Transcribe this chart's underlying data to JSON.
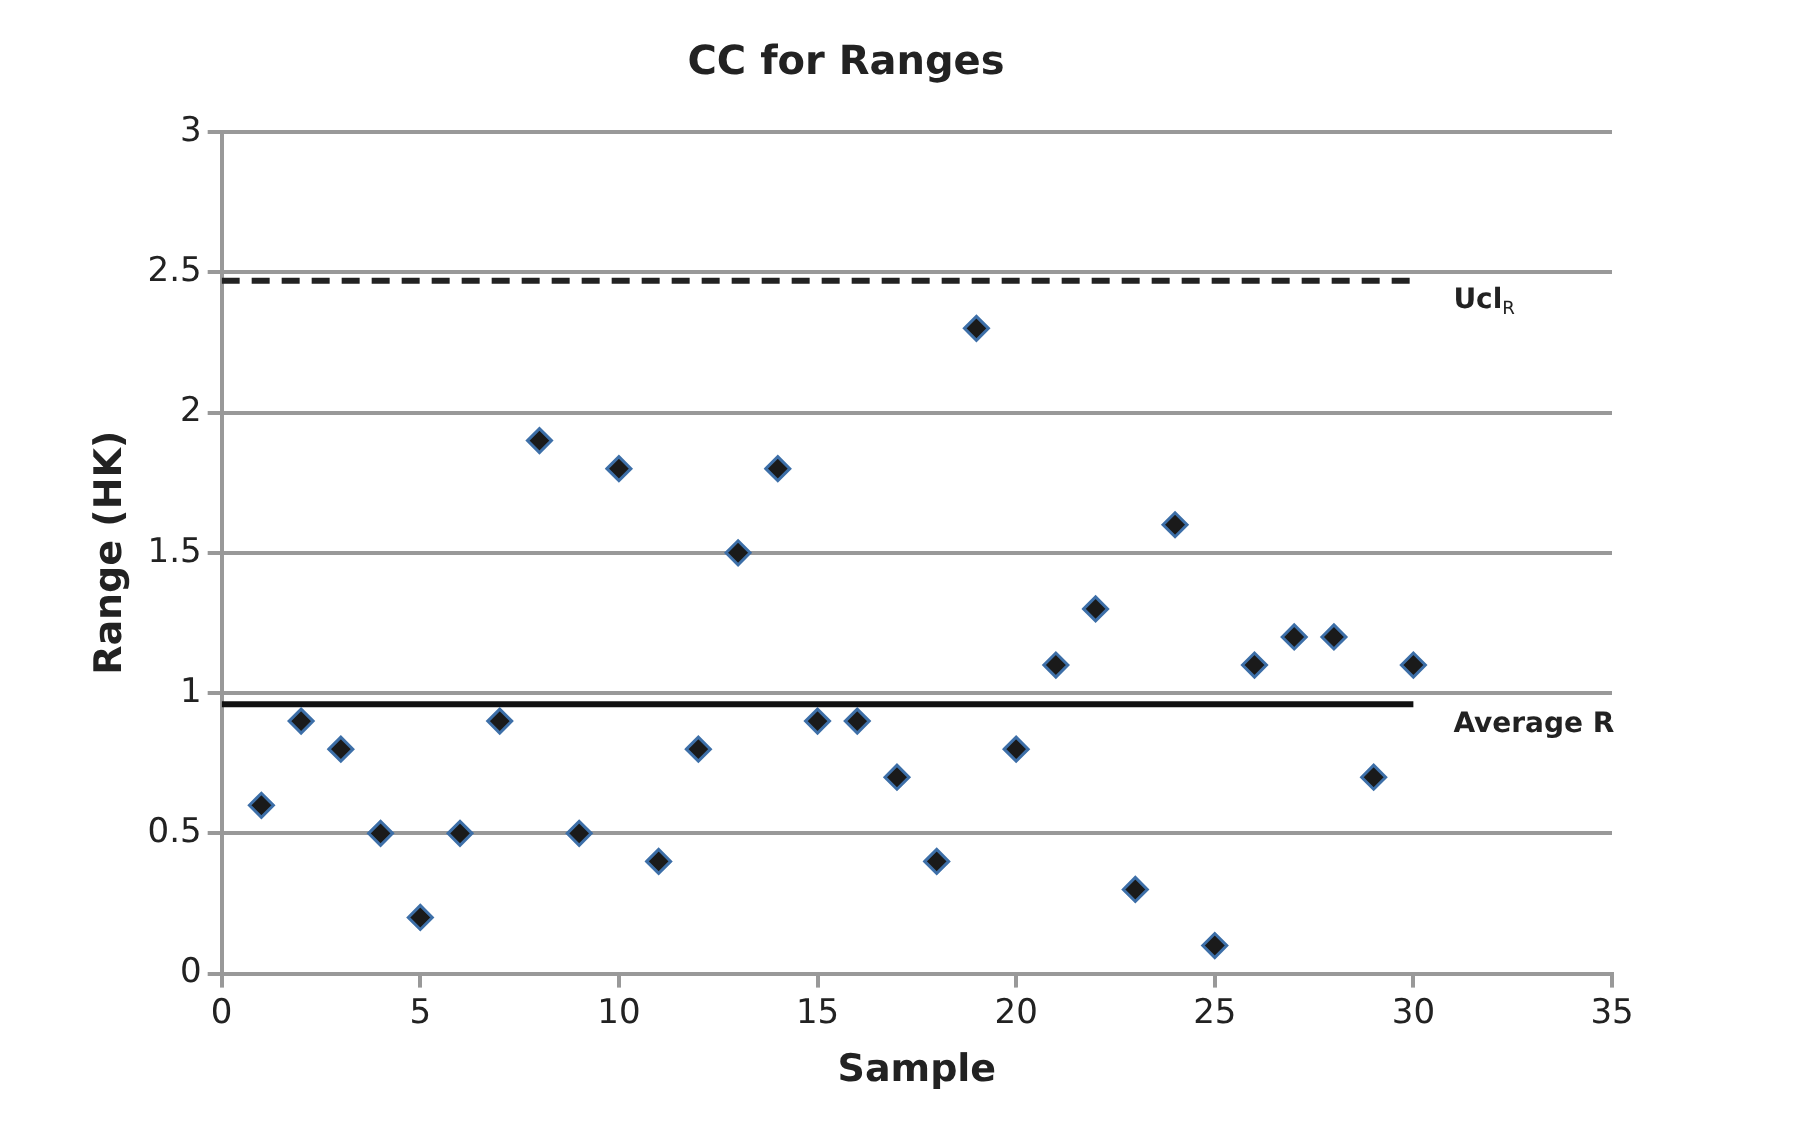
{
  "chart_data": {
    "type": "scatter",
    "title": "CC for Ranges",
    "xlabel": "Sample",
    "ylabel": "Range (HK)",
    "xlim": [
      0,
      35
    ],
    "xticks": [
      0,
      5,
      10,
      15,
      20,
      25,
      30,
      35
    ],
    "ylim": [
      0,
      3
    ],
    "yticks": [
      0,
      0.5,
      1,
      1.5,
      2,
      2.5,
      3
    ],
    "grid": "y",
    "legend": false,
    "marker": "diamond",
    "series": [
      {
        "type": "scatter",
        "color": "#1a1a1a",
        "x": [
          1,
          2,
          3,
          4,
          5,
          6,
          7,
          8,
          9,
          10,
          11,
          12,
          13,
          14,
          15,
          16,
          17,
          18,
          19,
          20,
          21,
          22,
          23,
          24,
          25,
          26,
          27,
          28,
          29,
          30
        ],
        "values": [
          0.6,
          0.9,
          0.8,
          0.5,
          0.2,
          0.5,
          0.9,
          1.9,
          0.5,
          1.8,
          0.4,
          0.8,
          1.5,
          1.8,
          0.9,
          0.9,
          0.7,
          0.4,
          2.3,
          0.8,
          1.1,
          1.3,
          0.3,
          1.6,
          0.1,
          1.1,
          1.2,
          1.2,
          0.7,
          1.1
        ]
      },
      {
        "type": "line",
        "name": "Ucl$_{R}$",
        "color": "#222222",
        "line_style": "dashed",
        "marker": "none",
        "x": [
          0,
          30
        ],
        "values": [
          2.47,
          2.47
        ]
      },
      {
        "type": "line",
        "name": "Average R",
        "color": "#111111",
        "line_style": "solid",
        "marker": "none",
        "x": [
          0,
          30
        ],
        "values": [
          0.96,
          0.96
        ]
      }
    ]
  }
}
